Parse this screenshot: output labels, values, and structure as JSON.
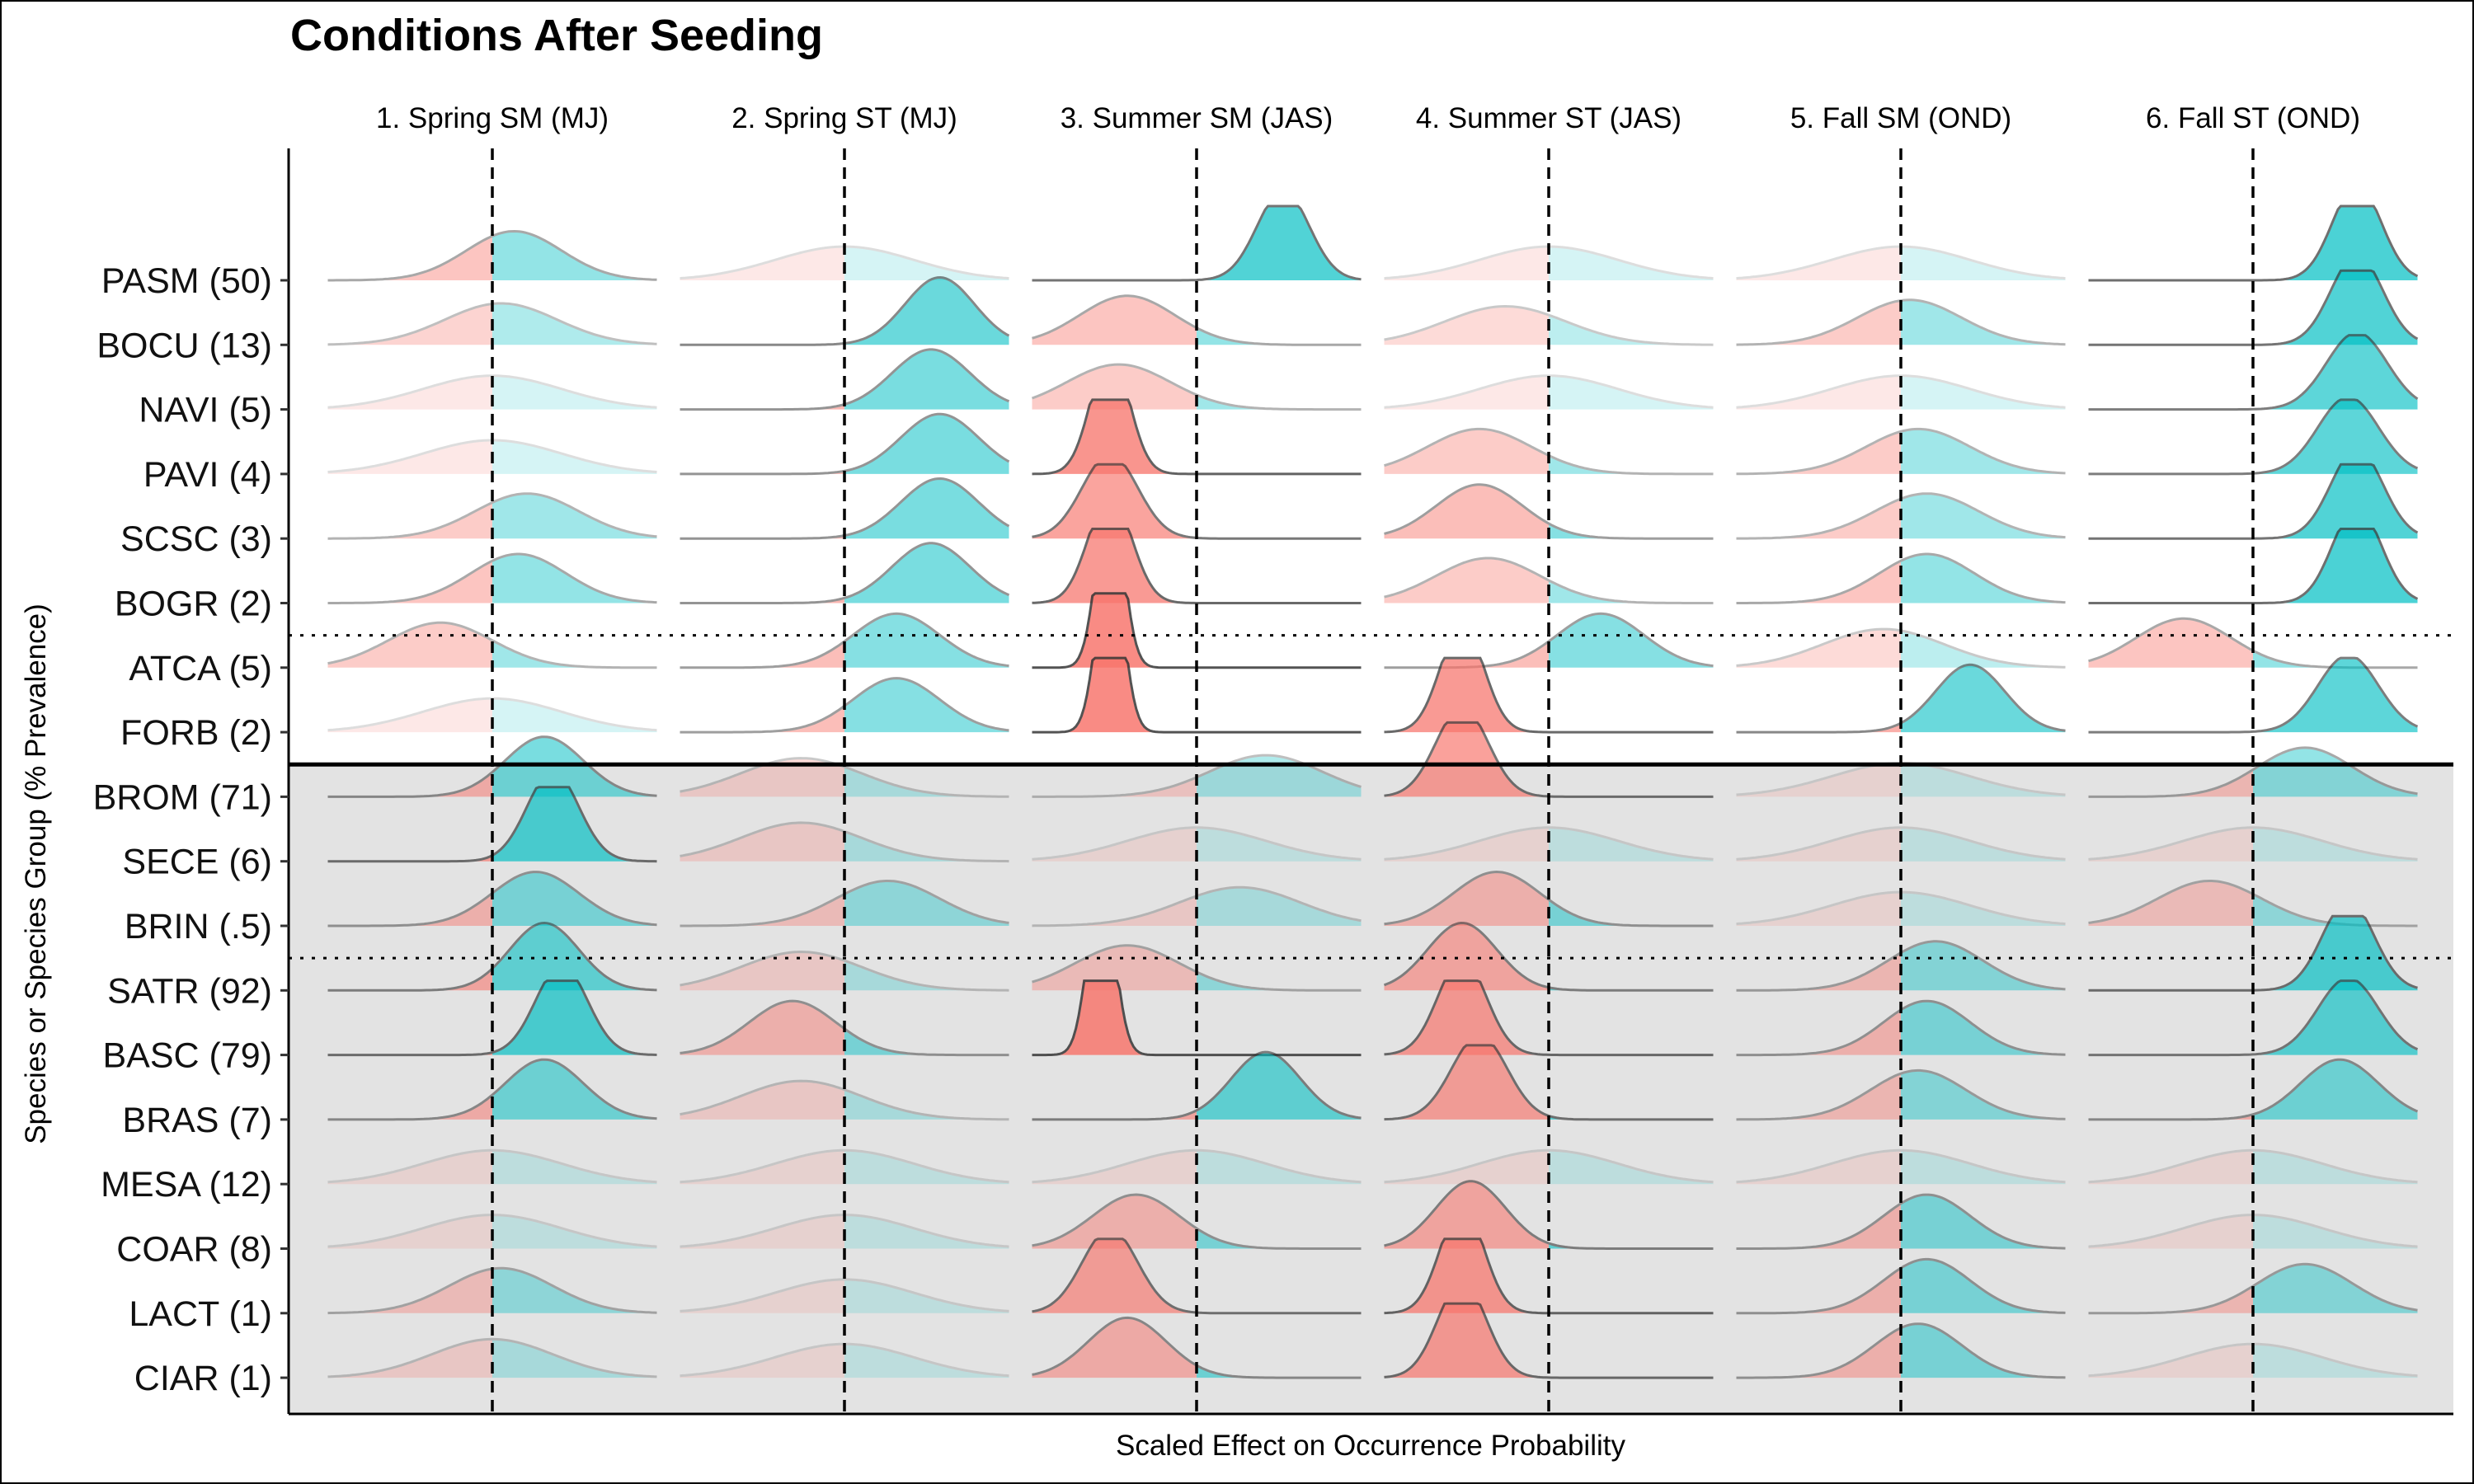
{
  "colors": {
    "negative": "#F8766D",
    "positive": "#00BFC4",
    "native_band": "#ffffff",
    "invasive_band": "#e3e3e3",
    "outline": "#333333"
  },
  "chart_data": {
    "type": "ridgeline",
    "title": "Conditions After Seeding",
    "xlabel": "Scaled Effect on Occurrence Probability",
    "ylabel": "Species or Species Group (% Prevalence)",
    "facets": [
      "1. Spring SM (MJ)",
      "2. Spring ST (MJ)",
      "3. Summer SM (JAS)",
      "4. Summer ST (JAS)",
      "5. Fall SM (OND)",
      "6. Fall ST (OND)"
    ],
    "reference_line": 0,
    "groups": [
      {
        "name": "",
        "shading": "none",
        "rows": [
          "PASM (50)",
          "BOCU (13)",
          "NAVI (5)",
          "PAVI (4)",
          "SCSC (3)",
          "BOGR (2)"
        ]
      },
      {
        "name": "",
        "shading": "none",
        "rows": [
          "ATCA (5)",
          "FORB (2)"
        ]
      },
      {
        "name": "",
        "shading": "grey",
        "rows": [
          "BROM (71)",
          "SECE (6)",
          "BRIN (.5)"
        ]
      },
      {
        "name": "",
        "shading": "grey",
        "rows": [
          "SATR (92)",
          "BASC (79)",
          "BRAS (7)",
          "MESA (12)",
          "COAR (8)",
          "LACT (1)",
          "CIAR (1)"
        ]
      }
    ],
    "rows": [
      "PASM (50)",
      "BOCU (13)",
      "NAVI (5)",
      "PAVI (4)",
      "SCSC (3)",
      "BOGR (2)",
      "ATCA (5)",
      "FORB (2)",
      "BROM (71)",
      "SECE (6)",
      "BRIN (.5)",
      "SATR (92)",
      "BASC (79)",
      "BRAS (7)",
      "MESA (12)",
      "COAR (8)",
      "LACT (1)",
      "CIAR (1)"
    ],
    "series_note_values": "Each cell: [mean, sd] of the posterior effect distribution, facet x-range [-2, 2]",
    "distributions": [
      [
        [
          0.25,
          0.55
        ],
        [
          0.0,
          0.8
        ],
        [
          1.0,
          0.3
        ],
        [
          0.0,
          0.8
        ],
        [
          0.0,
          0.8
        ],
        [
          1.2,
          0.28
        ]
      ],
      [
        [
          0.1,
          0.65
        ],
        [
          1.1,
          0.4
        ],
        [
          -0.8,
          0.55
        ],
        [
          -0.5,
          0.7
        ],
        [
          0.1,
          0.6
        ],
        [
          1.2,
          0.3
        ]
      ],
      [
        [
          0.0,
          0.8
        ],
        [
          1.0,
          0.45
        ],
        [
          -0.9,
          0.6
        ],
        [
          0.0,
          0.8
        ],
        [
          0.0,
          0.8
        ],
        [
          1.2,
          0.35
        ]
      ],
      [
        [
          0.0,
          0.8
        ],
        [
          1.1,
          0.45
        ],
        [
          -1.0,
          0.22
        ],
        [
          -0.8,
          0.6
        ],
        [
          0.2,
          0.6
        ],
        [
          1.1,
          0.35
        ]
      ],
      [
        [
          0.4,
          0.6
        ],
        [
          1.1,
          0.45
        ],
        [
          -1.0,
          0.32
        ],
        [
          -0.8,
          0.5
        ],
        [
          0.3,
          0.6
        ],
        [
          1.2,
          0.3
        ]
      ],
      [
        [
          0.3,
          0.55
        ],
        [
          1.0,
          0.45
        ],
        [
          -1.0,
          0.25
        ],
        [
          -0.7,
          0.6
        ],
        [
          0.3,
          0.55
        ],
        [
          1.2,
          0.28
        ]
      ],
      [
        [
          -0.6,
          0.6
        ],
        [
          0.6,
          0.5
        ],
        [
          -1.0,
          0.15
        ],
        [
          0.6,
          0.5
        ],
        [
          -0.2,
          0.7
        ],
        [
          -0.8,
          0.55
        ]
      ],
      [
        [
          0.0,
          0.8
        ],
        [
          0.6,
          0.5
        ],
        [
          -1.0,
          0.15
        ],
        [
          -1.0,
          0.25
        ],
        [
          0.8,
          0.4
        ],
        [
          1.1,
          0.35
        ]
      ],
      [
        [
          0.6,
          0.45
        ],
        [
          -0.5,
          0.7
        ],
        [
          0.8,
          0.65
        ],
        [
          -1.0,
          0.3
        ],
        [
          0.0,
          0.8
        ],
        [
          0.6,
          0.55
        ]
      ],
      [
        [
          0.7,
          0.3
        ],
        [
          -0.5,
          0.7
        ],
        [
          0.0,
          0.8
        ],
        [
          0.0,
          0.8
        ],
        [
          0.0,
          0.8
        ],
        [
          0.0,
          0.8
        ]
      ],
      [
        [
          0.5,
          0.5
        ],
        [
          0.5,
          0.6
        ],
        [
          0.5,
          0.7
        ],
        [
          -0.6,
          0.5
        ],
        [
          0.0,
          0.8
        ],
        [
          -0.5,
          0.6
        ]
      ],
      [
        [
          0.6,
          0.4
        ],
        [
          -0.5,
          0.7
        ],
        [
          -0.8,
          0.6
        ],
        [
          -1.0,
          0.4
        ],
        [
          0.4,
          0.55
        ],
        [
          1.1,
          0.3
        ]
      ],
      [
        [
          0.8,
          0.3
        ],
        [
          -0.6,
          0.5
        ],
        [
          -1.1,
          0.15
        ],
        [
          -1.0,
          0.28
        ],
        [
          0.3,
          0.5
        ],
        [
          1.1,
          0.35
        ]
      ],
      [
        [
          0.6,
          0.45
        ],
        [
          -0.5,
          0.7
        ],
        [
          0.8,
          0.4
        ],
        [
          -0.8,
          0.32
        ],
        [
          0.2,
          0.55
        ],
        [
          1.0,
          0.45
        ]
      ],
      [
        [
          0.0,
          0.8
        ],
        [
          0.0,
          0.8
        ],
        [
          0.0,
          0.8
        ],
        [
          0.0,
          0.8
        ],
        [
          0.0,
          0.8
        ],
        [
          0.0,
          0.8
        ]
      ],
      [
        [
          0.0,
          0.8
        ],
        [
          0.0,
          0.8
        ],
        [
          -0.7,
          0.5
        ],
        [
          -0.9,
          0.4
        ],
        [
          0.3,
          0.5
        ],
        [
          0.0,
          0.8
        ]
      ],
      [
        [
          0.1,
          0.6
        ],
        [
          0.0,
          0.8
        ],
        [
          -1.0,
          0.32
        ],
        [
          -1.0,
          0.25
        ],
        [
          0.3,
          0.5
        ],
        [
          0.6,
          0.55
        ]
      ],
      [
        [
          0.0,
          0.7
        ],
        [
          0.0,
          0.8
        ],
        [
          -0.8,
          0.45
        ],
        [
          -1.0,
          0.28
        ],
        [
          0.2,
          0.5
        ],
        [
          0.0,
          0.8
        ]
      ]
    ],
    "grid": false,
    "legend": "none"
  }
}
